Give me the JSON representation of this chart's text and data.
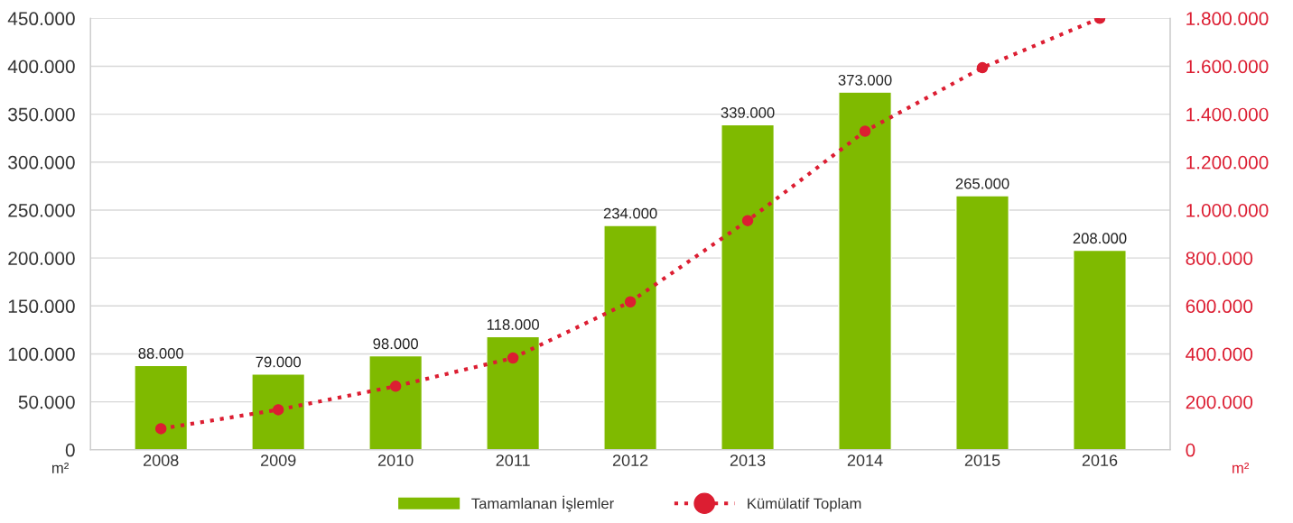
{
  "chart_data": {
    "type": "bar",
    "categories": [
      "2008",
      "2009",
      "2010",
      "2011",
      "2012",
      "2013",
      "2014",
      "2015",
      "2016"
    ],
    "series": [
      {
        "name": "Tamamlanan İşlemler",
        "color": "#7fba00",
        "values": [
          88000,
          79000,
          98000,
          118000,
          234000,
          339000,
          373000,
          265000,
          208000
        ],
        "value_labels": [
          "88.000",
          "79.000",
          "98.000",
          "118.000",
          "234.000",
          "339.000",
          "373.000",
          "265.000",
          "208.000"
        ]
      },
      {
        "name": "Kümülatif Toplam",
        "type": "line",
        "axis": "y2",
        "color": "#dc1e32",
        "marker": "circle",
        "line_style": "dotted",
        "values": [
          88000,
          167000,
          265000,
          383000,
          617000,
          956000,
          1329000,
          1594000,
          1800000
        ]
      }
    ],
    "ylim": [
      0,
      450000
    ],
    "yticks": [
      {
        "value": 0,
        "label": "0"
      },
      {
        "value": 50000,
        "label": "50.000"
      },
      {
        "value": 100000,
        "label": "100.000"
      },
      {
        "value": 150000,
        "label": "150.000"
      },
      {
        "value": 200000,
        "label": "200.000"
      },
      {
        "value": 250000,
        "label": "250.000"
      },
      {
        "value": 300000,
        "label": "300.000"
      },
      {
        "value": 350000,
        "label": "350.000"
      },
      {
        "value": 400000,
        "label": "400.000"
      },
      {
        "value": 450000,
        "label": "450.000"
      }
    ],
    "y2lim": [
      0,
      1800000
    ],
    "y2ticks": [
      {
        "value": 0,
        "label": "0"
      },
      {
        "value": 200000,
        "label": "200.000"
      },
      {
        "value": 400000,
        "label": "400.000"
      },
      {
        "value": 600000,
        "label": "600.000"
      },
      {
        "value": 800000,
        "label": "800.000"
      },
      {
        "value": 1000000,
        "label": "1.000.000"
      },
      {
        "value": 1200000,
        "label": "1.200.000"
      },
      {
        "value": 1400000,
        "label": "1.400.000"
      },
      {
        "value": 1600000,
        "label": "1.600.000"
      },
      {
        "value": 1800000,
        "label": "1.800.000"
      }
    ],
    "ylabel": "m²",
    "y2label": "m²",
    "grid": "y",
    "legend": "bottom"
  }
}
